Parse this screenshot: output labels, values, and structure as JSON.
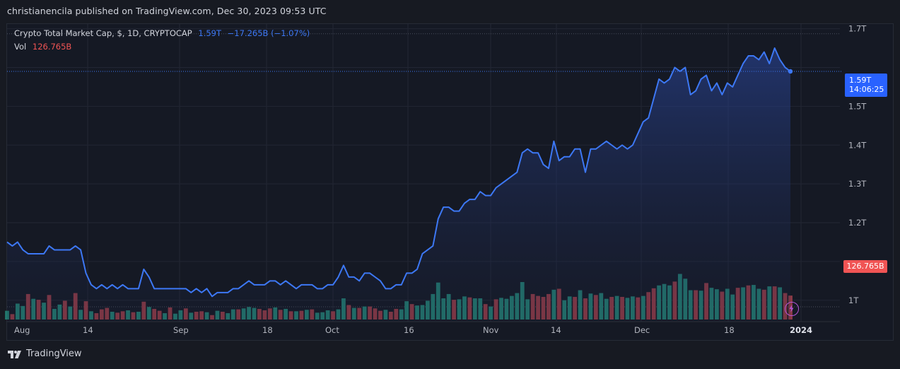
{
  "header": {
    "published_by": "christianencila published on TradingView.com, Dec 30, 2023 09:53 UTC"
  },
  "legend": {
    "symbol": "Crypto Total Market Cap, $, 1D, CRYPTOCAP",
    "price": "1.59T",
    "change": "−17.265B (−1.07%)",
    "vol_label": "Vol",
    "vol_value": "126.765B"
  },
  "price_tag": {
    "value": "1.59T",
    "countdown": "14:06:25"
  },
  "volume_tag": "126.765B",
  "footer": {
    "brand": "TradingView"
  },
  "colors": {
    "line": "#3d78f5",
    "up_volume": "#22786e",
    "down_volume": "#8c3a45",
    "accent": "#2962ff",
    "sell_red": "#f05454"
  },
  "chart_data": {
    "type": "area",
    "title": "Crypto Total Market Cap, $, 1D, CRYPTOCAP",
    "xlabel": "",
    "ylabel": "",
    "ylim": [
      0.945,
      1.712
    ],
    "y_ticks": [
      "1T",
      "1.2T",
      "1.3T",
      "1.4T",
      "1.5T",
      "1.7T"
    ],
    "x_ticks": [
      "Aug",
      "14",
      "Sep",
      "18",
      "Oct",
      "16",
      "Nov",
      "14",
      "Dec",
      "18",
      "2024"
    ],
    "grid": true,
    "current_price_line": 1.59,
    "series": [
      {
        "values": [
          1.15,
          1.14,
          1.15,
          1.13,
          1.12,
          1.12,
          1.12,
          1.12,
          1.14,
          1.13,
          1.13,
          1.13,
          1.13,
          1.14,
          1.13,
          1.07,
          1.04,
          1.03,
          1.04,
          1.03,
          1.04,
          1.03,
          1.04,
          1.03,
          1.03,
          1.03,
          1.08,
          1.06,
          1.03,
          1.03,
          1.03,
          1.03,
          1.03,
          1.03,
          1.03,
          1.02,
          1.03,
          1.02,
          1.03,
          1.01,
          1.02,
          1.02,
          1.02,
          1.03,
          1.03,
          1.04,
          1.05,
          1.04,
          1.04,
          1.04,
          1.05,
          1.05,
          1.04,
          1.05,
          1.04,
          1.03,
          1.04,
          1.04,
          1.04,
          1.03,
          1.03,
          1.04,
          1.04,
          1.06,
          1.09,
          1.06,
          1.06,
          1.05,
          1.07,
          1.07,
          1.06,
          1.05,
          1.03,
          1.03,
          1.04,
          1.04,
          1.07,
          1.07,
          1.08,
          1.12,
          1.13,
          1.14,
          1.21,
          1.24,
          1.24,
          1.23,
          1.23,
          1.25,
          1.26,
          1.26,
          1.28,
          1.27,
          1.27,
          1.29,
          1.3,
          1.31,
          1.32,
          1.33,
          1.38,
          1.39,
          1.38,
          1.38,
          1.35,
          1.34,
          1.41,
          1.36,
          1.37,
          1.37,
          1.39,
          1.39,
          1.33,
          1.39,
          1.39,
          1.4,
          1.41,
          1.4,
          1.39,
          1.4,
          1.39,
          1.4,
          1.43,
          1.46,
          1.47,
          1.52,
          1.57,
          1.56,
          1.57,
          1.6,
          1.59,
          1.6,
          1.53,
          1.54,
          1.57,
          1.58,
          1.54,
          1.56,
          1.53,
          1.56,
          1.55,
          1.58,
          1.61,
          1.63,
          1.63,
          1.62,
          1.64,
          1.61,
          1.65,
          1.62,
          1.6,
          1.59
        ],
        "volumes_billion": [
          95,
          88,
          110,
          105,
          130,
          120,
          118,
          112,
          128,
          99,
          108,
          116,
          104,
          132,
          97,
          115,
          94,
          90,
          98,
          101,
          93,
          91,
          94,
          96,
          92,
          93,
          114,
          103,
          99,
          95,
          90,
          102,
          89,
          96,
          100,
          91,
          93,
          94,
          92,
          86,
          95,
          93,
          90,
          98,
          98,
          100,
          103,
          101,
          99,
          96,
          100,
          102,
          97,
          99,
          94,
          94,
          95,
          97,
          98,
          91,
          92,
          96,
          94,
          98,
          121,
          107,
          101,
          101,
          104,
          104,
          100,
          95,
          97,
          93,
          99,
          98,
          115,
          109,
          106,
          107,
          116,
          130,
          154,
          121,
          130,
          118,
          119,
          125,
          123,
          121,
          121,
          109,
          104,
          119,
          122,
          120,
          126,
          132,
          155,
          119,
          130,
          126,
          124,
          130,
          139,
          141,
          117,
          125,
          124,
          138,
          121,
          131,
          128,
          132,
          120,
          124,
          126,
          124,
          122,
          125,
          123,
          126,
          134,
          142,
          148,
          151,
          148,
          156,
          172,
          162,
          138,
          138,
          137,
          153,
          143,
          140,
          135,
          141,
          129,
          143,
          144,
          148,
          149,
          141,
          139,
          146,
          146,
          144,
          132,
          126.765
        ],
        "volume_up": [
          true,
          false,
          true,
          true,
          false,
          true,
          false,
          true,
          false,
          true,
          true,
          false,
          true,
          false,
          true,
          false,
          true,
          false,
          false,
          false,
          true,
          false,
          false,
          true,
          false,
          true,
          false,
          true,
          false,
          false,
          true,
          false,
          true,
          true,
          false,
          true,
          false,
          false,
          true,
          false,
          true,
          false,
          true,
          true,
          false,
          true,
          true,
          true,
          false,
          false,
          false,
          true,
          false,
          true,
          false,
          true,
          false,
          true,
          false,
          true,
          true,
          true,
          false,
          true,
          true,
          false,
          true,
          false,
          true,
          false,
          false,
          false,
          true,
          false,
          false,
          true,
          true,
          false,
          true,
          true,
          true,
          true,
          true,
          true,
          true,
          false,
          true,
          true,
          false,
          true,
          true,
          false,
          true,
          false,
          true,
          true,
          true,
          true,
          true,
          true,
          false,
          false,
          false,
          false,
          true,
          false,
          true,
          true,
          false,
          true,
          false,
          true,
          false,
          true,
          true,
          false,
          true,
          false,
          true,
          true,
          false,
          true,
          false,
          false,
          true,
          true,
          true,
          false,
          true,
          true,
          true,
          false,
          true,
          false,
          true,
          true,
          false,
          true,
          true,
          false,
          true,
          false,
          true,
          true,
          false,
          true,
          false,
          true,
          false,
          false
        ]
      }
    ]
  }
}
